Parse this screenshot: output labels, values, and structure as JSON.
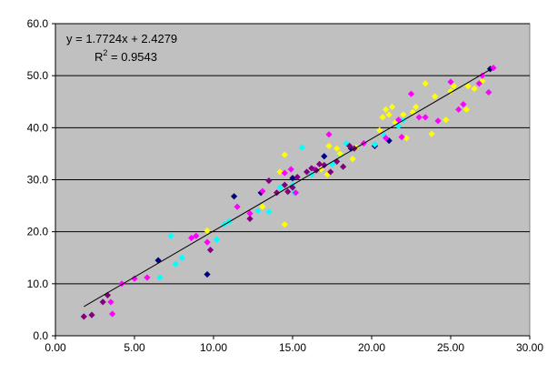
{
  "chart_data": {
    "type": "scatter",
    "title": "",
    "xlabel": "",
    "ylabel": "",
    "xlim": [
      0,
      30
    ],
    "ylim": [
      0,
      60
    ],
    "x_ticks": [
      "0.00",
      "5.00",
      "10.00",
      "15.00",
      "20.00",
      "25.00",
      "30.00"
    ],
    "y_ticks": [
      "0.0",
      "10.0",
      "20.0",
      "30.0",
      "40.0",
      "50.0",
      "60.0"
    ],
    "grid": "horizontal",
    "plot_background": "#c0c0c0",
    "trendline": {
      "slope": 1.7724,
      "intercept": 2.4279,
      "x_range": [
        1.8,
        27.6
      ],
      "equation": "y = 1.7724x + 2.4279",
      "r2_prefix": "R",
      "r2_exp": "2",
      "r2_value": " = 0.9543"
    },
    "series": [
      {
        "color": "#000080",
        "points": [
          [
            6.5,
            14.5
          ],
          [
            9.6,
            11.8
          ],
          [
            11.3,
            26.8
          ],
          [
            15.0,
            30.3
          ],
          [
            17.0,
            34.5
          ],
          [
            18.7,
            36.0
          ],
          [
            20.2,
            36.5
          ],
          [
            21.1,
            37.5
          ],
          [
            27.5,
            51.3
          ],
          [
            13.0,
            27.5
          ]
        ]
      },
      {
        "color": "#00ffff",
        "points": [
          [
            6.6,
            11.2
          ],
          [
            7.3,
            19.2
          ],
          [
            7.6,
            13.8
          ],
          [
            8.0,
            15.0
          ],
          [
            10.2,
            18.5
          ],
          [
            10.7,
            21.5
          ],
          [
            11.0,
            22.0
          ],
          [
            12.8,
            24.0
          ],
          [
            13.5,
            23.8
          ],
          [
            14.2,
            28.5
          ],
          [
            15.0,
            29.0
          ],
          [
            15.1,
            27.5
          ],
          [
            15.6,
            36.2
          ],
          [
            16.2,
            31.0
          ],
          [
            17.5,
            33.0
          ],
          [
            18.0,
            34.8
          ],
          [
            18.4,
            37.0
          ],
          [
            20.2,
            36.8
          ],
          [
            20.8,
            38.5
          ],
          [
            21.7,
            40.3
          ],
          [
            22.0,
            41.5
          ]
        ]
      },
      {
        "color": "#ffff00",
        "points": [
          [
            9.6,
            20.2
          ],
          [
            13.1,
            24.8
          ],
          [
            14.2,
            31.5
          ],
          [
            14.5,
            34.8
          ],
          [
            14.5,
            21.4
          ],
          [
            16.8,
            32.0
          ],
          [
            17.2,
            31.0
          ],
          [
            17.3,
            36.5
          ],
          [
            17.8,
            36.0
          ],
          [
            18.0,
            35.0
          ],
          [
            18.8,
            34.0
          ],
          [
            19.0,
            36.2
          ],
          [
            20.5,
            39.5
          ],
          [
            20.7,
            42.0
          ],
          [
            20.9,
            43.5
          ],
          [
            21.1,
            42.5
          ],
          [
            21.3,
            44.0
          ],
          [
            21.5,
            41.0
          ],
          [
            22.0,
            42.5
          ],
          [
            22.2,
            38.0
          ],
          [
            22.6,
            43.0
          ],
          [
            22.8,
            44.0
          ],
          [
            23.4,
            48.5
          ],
          [
            23.8,
            38.8
          ],
          [
            24.0,
            46.0
          ],
          [
            24.7,
            41.5
          ],
          [
            25.0,
            47.0
          ],
          [
            25.2,
            48.0
          ],
          [
            26.0,
            43.5
          ],
          [
            26.1,
            48.0
          ],
          [
            26.5,
            47.5
          ],
          [
            27.0,
            49.0
          ]
        ]
      },
      {
        "color": "#ff00ff",
        "points": [
          [
            3.5,
            6.5
          ],
          [
            3.6,
            4.2
          ],
          [
            4.2,
            10.0
          ],
          [
            5.0,
            11.0
          ],
          [
            5.8,
            11.2
          ],
          [
            8.6,
            18.8
          ],
          [
            8.9,
            19.2
          ],
          [
            9.6,
            18.0
          ],
          [
            11.5,
            24.8
          ],
          [
            12.3,
            23.5
          ],
          [
            13.1,
            27.8
          ],
          [
            14.5,
            31.3
          ],
          [
            14.9,
            32.0
          ],
          [
            15.2,
            27.5
          ],
          [
            16.4,
            32.0
          ],
          [
            17.3,
            38.7
          ],
          [
            19.5,
            37.0
          ],
          [
            20.9,
            38.0
          ],
          [
            21.7,
            41.5
          ],
          [
            21.9,
            38.2
          ],
          [
            22.5,
            46.5
          ],
          [
            23.0,
            42.0
          ],
          [
            23.4,
            42.0
          ],
          [
            24.2,
            41.3
          ],
          [
            25.0,
            48.8
          ],
          [
            25.5,
            43.5
          ],
          [
            25.8,
            44.5
          ],
          [
            26.8,
            48.5
          ],
          [
            27.0,
            50.0
          ],
          [
            27.4,
            46.8
          ],
          [
            27.7,
            51.5
          ]
        ]
      },
      {
        "color": "#800080",
        "points": [
          [
            1.8,
            3.7
          ],
          [
            2.3,
            4.0
          ],
          [
            3.0,
            6.5
          ],
          [
            3.3,
            7.8
          ],
          [
            9.8,
            16.5
          ],
          [
            12.3,
            22.5
          ],
          [
            14.0,
            27.5
          ],
          [
            14.5,
            29.0
          ],
          [
            14.7,
            27.7
          ],
          [
            15.0,
            28.5
          ],
          [
            15.3,
            30.5
          ],
          [
            15.9,
            31.5
          ],
          [
            16.2,
            32.2
          ],
          [
            16.5,
            31.8
          ],
          [
            16.7,
            33.0
          ],
          [
            17.0,
            32.8
          ],
          [
            17.4,
            31.5
          ],
          [
            17.8,
            33.5
          ],
          [
            18.2,
            32.5
          ],
          [
            18.6,
            36.5
          ],
          [
            18.9,
            36.0
          ],
          [
            13.5,
            29.8
          ]
        ]
      }
    ]
  }
}
